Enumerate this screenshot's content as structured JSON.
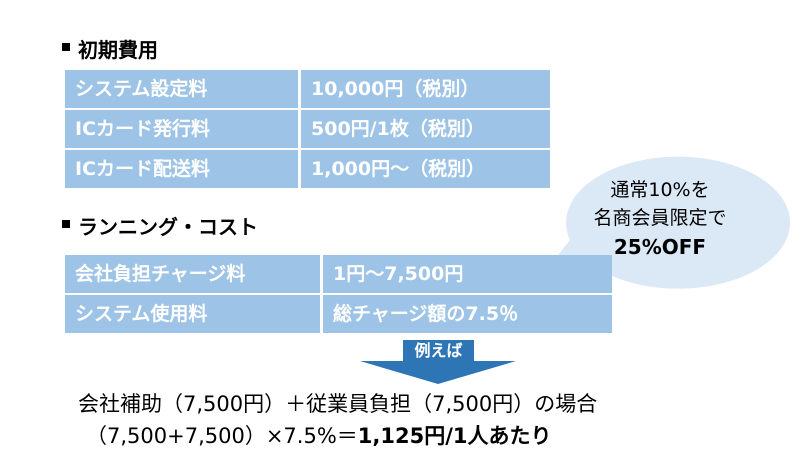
{
  "sections": [
    {
      "heading": "初期費用",
      "rows": [
        [
          "システム設定料",
          "10,000円（税別）"
        ],
        [
          "ICカード発行料",
          "500円/1枚（税別）"
        ],
        [
          "ICカード配送料",
          "1,000円～（税別）"
        ]
      ]
    },
    {
      "heading": "ランニング・コスト",
      "rows": [
        [
          "会社負担チャージ料",
          "1円～7,500円"
        ],
        [
          "システム使用料",
          "総チャージ額の7.5％"
        ]
      ]
    }
  ],
  "bubble": {
    "lines": [
      "通常10%を",
      "名商会員限定で"
    ],
    "emphasis": "25%OFF"
  },
  "arrow_label": "例えば",
  "example": {
    "line1": "会社補助（7,500円）＋従業員負担（7,500円）の場合",
    "line2": "（7,500+7,500）×7.5%＝",
    "result": "1,125円/1人あたり"
  }
}
